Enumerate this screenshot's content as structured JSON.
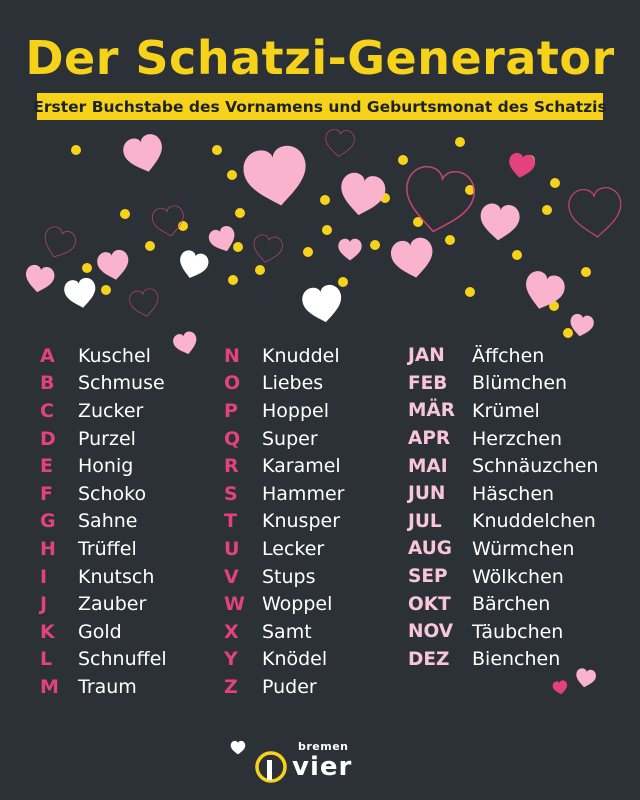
{
  "header": {
    "title": "Der Schatzi-Generator",
    "subtitle": "Erster Buchstabe des Vornamens und Geburtsmonat des Schatzis"
  },
  "colors": {
    "background": "#2b3137",
    "accent_yellow": "#f6d31a",
    "letter_pink": "#e3427f",
    "month_pink": "#f9c6d7",
    "text": "#ffffff"
  },
  "letters_left": [
    {
      "key": "A",
      "value": "Kuschel"
    },
    {
      "key": "B",
      "value": "Schmuse"
    },
    {
      "key": "C",
      "value": "Zucker"
    },
    {
      "key": "D",
      "value": "Purzel"
    },
    {
      "key": "E",
      "value": "Honig"
    },
    {
      "key": "F",
      "value": "Schoko"
    },
    {
      "key": "G",
      "value": "Sahne"
    },
    {
      "key": "H",
      "value": "Trüffel"
    },
    {
      "key": "I",
      "value": "Knutsch"
    },
    {
      "key": "J",
      "value": "Zauber"
    },
    {
      "key": "K",
      "value": "Gold"
    },
    {
      "key": "L",
      "value": "Schnuffel"
    },
    {
      "key": "M",
      "value": "Traum"
    }
  ],
  "letters_right": [
    {
      "key": "N",
      "value": "Knuddel"
    },
    {
      "key": "O",
      "value": "Liebes"
    },
    {
      "key": "P",
      "value": "Hoppel"
    },
    {
      "key": "Q",
      "value": "Super"
    },
    {
      "key": "R",
      "value": "Karamel"
    },
    {
      "key": "S",
      "value": "Hammer"
    },
    {
      "key": "T",
      "value": "Knusper"
    },
    {
      "key": "U",
      "value": "Lecker"
    },
    {
      "key": "V",
      "value": "Stups"
    },
    {
      "key": "W",
      "value": "Woppel"
    },
    {
      "key": "X",
      "value": "Samt"
    },
    {
      "key": "Y",
      "value": "Knödel"
    },
    {
      "key": "Z",
      "value": "Puder"
    }
  ],
  "months": [
    {
      "key": "JAN",
      "value": "Äffchen"
    },
    {
      "key": "FEB",
      "value": "Blümchen"
    },
    {
      "key": "MÄR",
      "value": "Krümel"
    },
    {
      "key": "APR",
      "value": "Herzchen"
    },
    {
      "key": "MAI",
      "value": "Schnäuzchen"
    },
    {
      "key": "JUN",
      "value": "Häschen"
    },
    {
      "key": "JUL",
      "value": "Knuddelchen"
    },
    {
      "key": "AUG",
      "value": "Würmchen"
    },
    {
      "key": "SEP",
      "value": "Wölkchen"
    },
    {
      "key": "OKT",
      "value": "Bärchen"
    },
    {
      "key": "NOV",
      "value": "Täubchen"
    },
    {
      "key": "DEZ",
      "value": "Bienchen"
    }
  ],
  "logo": {
    "top_text": "bremen",
    "bottom_text": "vier"
  }
}
